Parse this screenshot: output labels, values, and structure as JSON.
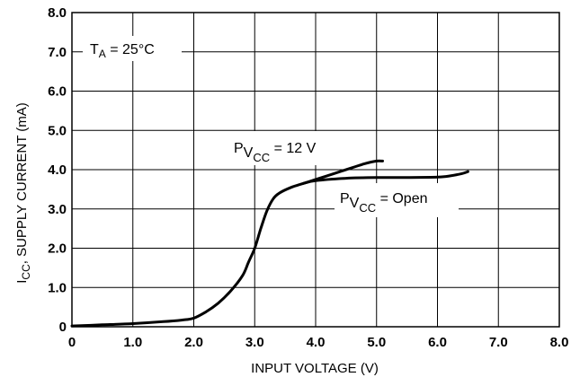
{
  "chart_data": {
    "type": "line",
    "title": "",
    "xlabel": "INPUT VOLTAGE (V)",
    "ylabel": "I",
    "ylabel_sub": "CC",
    "ylabel_rest": ", SUPPLY CURRENT (mA)",
    "xlim": [
      0,
      8.0
    ],
    "ylim": [
      0,
      8.0
    ],
    "x_ticks": [
      "0",
      "1.0",
      "2.0",
      "3.0",
      "4.0",
      "5.0",
      "6.0",
      "7.0",
      "8.0"
    ],
    "y_ticks": [
      "0",
      "1.0",
      "2.0",
      "3.0",
      "4.0",
      "5.0",
      "6.0",
      "7.0",
      "8.0"
    ],
    "grid": true,
    "annotations": {
      "ta": {
        "main": "T",
        "sub": "A",
        "rest": " = 25°C"
      },
      "pvcc12": {
        "main": "P",
        "sub1": "V",
        "sub2": "CC",
        "rest": " =  12 V"
      },
      "pvccopen": {
        "main": "P",
        "sub1": "V",
        "sub2": "CC",
        "rest": " =  Open"
      }
    },
    "series": [
      {
        "x": [
          0,
          0.5,
          1.0,
          1.5,
          1.8,
          2.0,
          2.2,
          2.4,
          2.6,
          2.8,
          2.9,
          3.0,
          3.1,
          3.2,
          3.3,
          3.4,
          3.6,
          3.8,
          4.0,
          4.3,
          4.6,
          4.8,
          5.0,
          5.1
        ],
        "y": [
          0.02,
          0.05,
          0.08,
          0.13,
          0.17,
          0.22,
          0.38,
          0.6,
          0.9,
          1.3,
          1.65,
          2.0,
          2.5,
          2.95,
          3.25,
          3.4,
          3.55,
          3.65,
          3.75,
          3.9,
          4.05,
          4.15,
          4.22,
          4.22
        ]
      },
      {
        "x": [
          3.8,
          4.0,
          4.5,
          5.0,
          5.5,
          6.0,
          6.2,
          6.4,
          6.5
        ],
        "y": [
          3.65,
          3.72,
          3.78,
          3.8,
          3.8,
          3.81,
          3.84,
          3.9,
          3.95
        ]
      }
    ]
  }
}
